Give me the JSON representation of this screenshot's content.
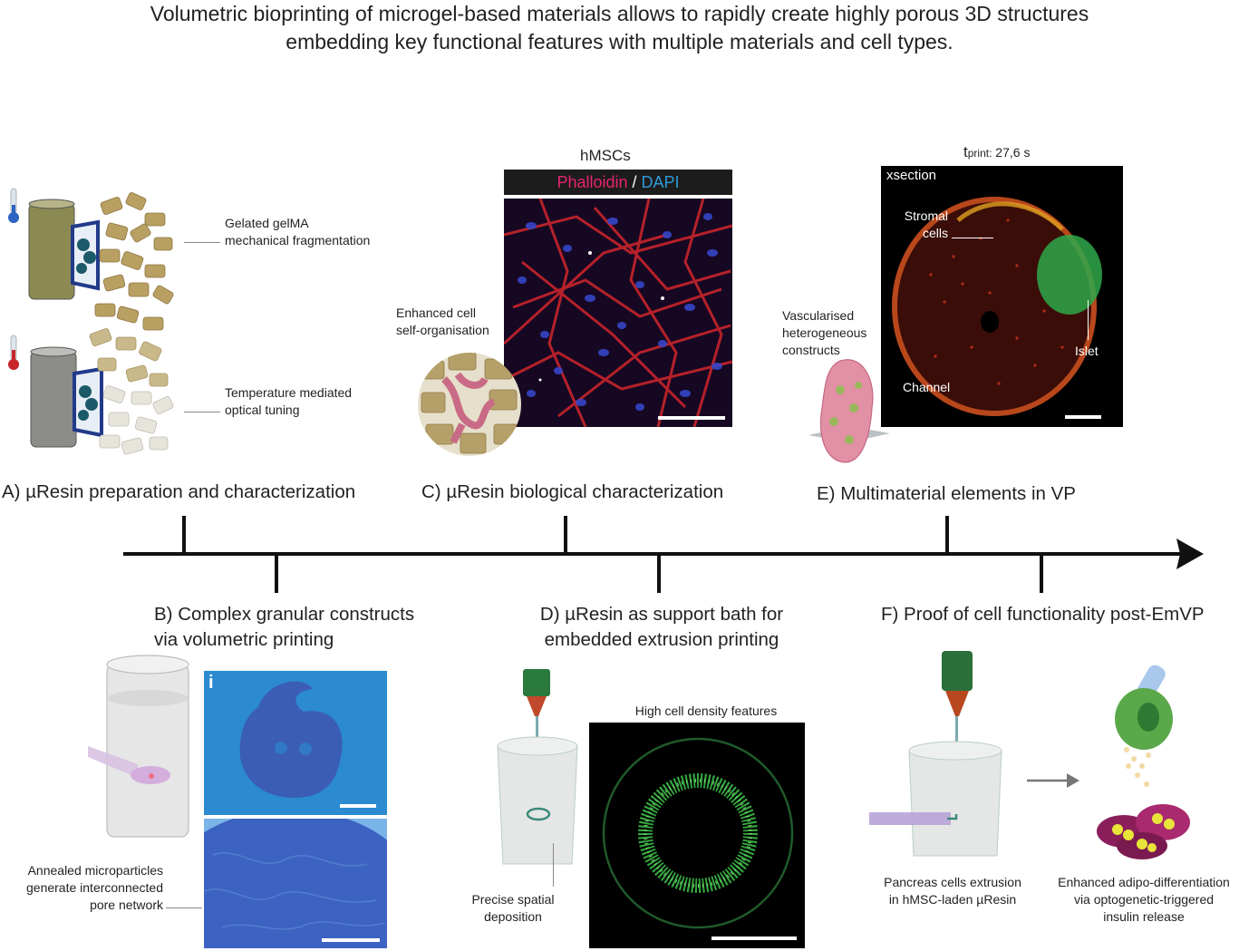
{
  "title": {
    "line1": "Volumetric bioprinting of microgel-based materials allows to rapidly create highly porous 3D structures",
    "line2": "embedding key functional features with multiple materials and cell types."
  },
  "sections": {
    "a": "A) µResin preparation and characterization",
    "b_line1": "B) Complex granular constructs",
    "b_line2": "via volumetric printing",
    "c": "C) µResin biological characterization",
    "d_line1": "D) µResin as support bath for",
    "d_line2": "embedded extrusion printing",
    "e": "E) Multimaterial elements in VP",
    "f": "F) Proof of cell functionality post-EmVP"
  },
  "panel_a": {
    "label1_line1": "Gelated gelMA",
    "label1_line2": "mechanical fragmentation",
    "label2_line1": "Temperature mediated",
    "label2_line2": "optical tuning"
  },
  "panel_b": {
    "inset_label": "i",
    "note_line1": "Annealed microparticles",
    "note_line2": "generate interconnected",
    "note_line3": "pore network"
  },
  "panel_c": {
    "cell_title": "hMSCs",
    "stain1": "Phalloidin",
    "stain_sep": " / ",
    "stain2": "DAPI",
    "note_line1": "Enhanced cell",
    "note_line2": "self-organisation"
  },
  "panel_d": {
    "image_title": "High cell density features",
    "note_line1": "Precise spatial",
    "note_line2": "deposition"
  },
  "panel_e": {
    "time_prefix": "t",
    "time_sub": "print:",
    "time_value": " 27,6 s",
    "image_label": "xsection",
    "stromal_line1": "Stromal",
    "stromal_line2": "cells",
    "islet": "Islet",
    "channel": "Channel",
    "note_line1": "Vascularised",
    "note_line2": "heterogeneous",
    "note_line3": "constructs"
  },
  "panel_f": {
    "left_line1": "Pancreas cells extrusion",
    "left_line2": "in hMSC-laden µResin",
    "right_line1": "Enhanced adipo-differentiation",
    "right_line2": "via optogenetic-triggered",
    "right_line3": "insulin release"
  },
  "colors": {
    "phalloidin": "#e8236f",
    "dapi": "#2d9ad9",
    "stain_bar": "#1c1c1c",
    "timeline": "#111111"
  }
}
